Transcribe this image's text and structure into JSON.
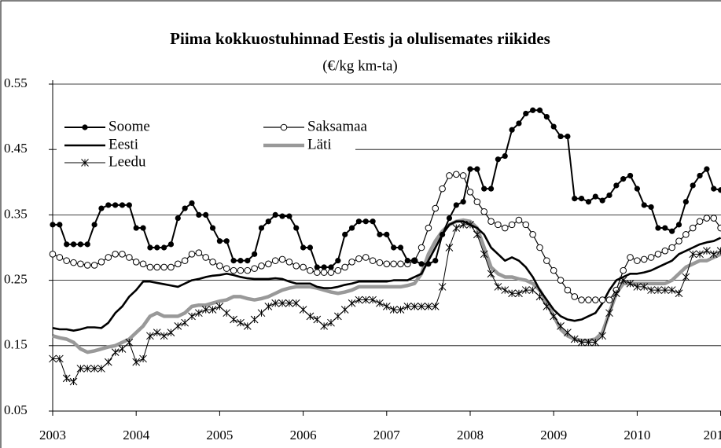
{
  "chart_data": {
    "type": "line",
    "title": "Piima kokkuostuhinnad Eestis ja olulisemates riikides",
    "subtitle": "(€/kg km-ta)",
    "categories": [
      "2003",
      null,
      null,
      null,
      null,
      null,
      null,
      null,
      null,
      null,
      null,
      null,
      "2004",
      null,
      null,
      null,
      null,
      null,
      null,
      null,
      null,
      null,
      null,
      null,
      "2005",
      null,
      null,
      null,
      null,
      null,
      null,
      null,
      null,
      null,
      null,
      null,
      "2006",
      null,
      null,
      null,
      null,
      null,
      null,
      null,
      null,
      null,
      null,
      null,
      "2007",
      null,
      null,
      null,
      null,
      null,
      null,
      null,
      null,
      null,
      null,
      null,
      "2008",
      null,
      null,
      null,
      null,
      null,
      null,
      null,
      null,
      null,
      null,
      null,
      "2009",
      null,
      null,
      null,
      null,
      null,
      null,
      null,
      null,
      null,
      null,
      null,
      "2010",
      null,
      null,
      null,
      null,
      null,
      null,
      null,
      null,
      null,
      null,
      null,
      "201"
    ],
    "ylim": [
      0.05,
      0.55
    ],
    "yticks": [
      0.05,
      0.15,
      0.25,
      0.35,
      0.45,
      0.55
    ],
    "grid": true,
    "legend": "upper left",
    "series": [
      {
        "name": "Soome",
        "color": "#000000",
        "marker": "filled-circle",
        "width": 2,
        "values": [
          0.335,
          0.335,
          0.305,
          0.305,
          0.305,
          0.305,
          0.335,
          0.36,
          0.365,
          0.365,
          0.365,
          0.365,
          0.33,
          0.33,
          0.3,
          0.3,
          0.3,
          0.305,
          0.345,
          0.36,
          0.368,
          0.35,
          0.35,
          0.33,
          0.31,
          0.31,
          0.28,
          0.28,
          0.28,
          0.29,
          0.33,
          0.34,
          0.35,
          0.348,
          0.348,
          0.33,
          0.3,
          0.3,
          0.27,
          0.27,
          0.27,
          0.28,
          0.32,
          0.33,
          0.34,
          0.34,
          0.34,
          0.32,
          0.32,
          0.3,
          0.3,
          0.28,
          0.28,
          0.275,
          0.275,
          0.28,
          0.32,
          0.345,
          0.365,
          0.37,
          0.42,
          0.42,
          0.39,
          0.39,
          0.435,
          0.44,
          0.48,
          0.49,
          0.505,
          0.51,
          0.51,
          0.5,
          0.485,
          0.47,
          0.47,
          0.375,
          0.375,
          0.37,
          0.378,
          0.372,
          0.38,
          0.395,
          0.405,
          0.41,
          0.39,
          0.365,
          0.362,
          0.33,
          0.33,
          0.325,
          0.335,
          0.37,
          0.395,
          0.41,
          0.42,
          0.39,
          0.388
        ]
      },
      {
        "name": "Saksamaa",
        "color": "#000000",
        "marker": "open-circle",
        "width": 1.2,
        "values": [
          0.29,
          0.285,
          0.28,
          0.277,
          0.275,
          0.273,
          0.273,
          0.278,
          0.285,
          0.29,
          0.29,
          0.285,
          0.278,
          0.275,
          0.27,
          0.27,
          0.27,
          0.27,
          0.275,
          0.28,
          0.29,
          0.292,
          0.285,
          0.278,
          0.272,
          0.268,
          0.265,
          0.265,
          0.265,
          0.268,
          0.272,
          0.275,
          0.28,
          0.282,
          0.278,
          0.272,
          0.27,
          0.265,
          0.262,
          0.262,
          0.262,
          0.265,
          0.27,
          0.278,
          0.283,
          0.285,
          0.28,
          0.277,
          0.275,
          0.275,
          0.275,
          0.275,
          0.28,
          0.3,
          0.33,
          0.36,
          0.39,
          0.41,
          0.412,
          0.41,
          0.385,
          0.37,
          0.355,
          0.34,
          0.335,
          0.33,
          0.335,
          0.342,
          0.335,
          0.32,
          0.3,
          0.28,
          0.265,
          0.25,
          0.235,
          0.225,
          0.22,
          0.22,
          0.22,
          0.22,
          0.22,
          0.235,
          0.265,
          0.285,
          0.28,
          0.282,
          0.285,
          0.29,
          0.295,
          0.3,
          0.31,
          0.32,
          0.33,
          0.34,
          0.345,
          0.345,
          0.33
        ]
      },
      {
        "name": "Eesti",
        "color": "#000000",
        "marker": "none",
        "width": 2.6,
        "values": [
          0.177,
          0.175,
          0.175,
          0.173,
          0.175,
          0.178,
          0.178,
          0.177,
          0.185,
          0.2,
          0.21,
          0.225,
          0.235,
          0.248,
          0.248,
          0.246,
          0.244,
          0.242,
          0.24,
          0.245,
          0.25,
          0.252,
          0.255,
          0.257,
          0.258,
          0.26,
          0.258,
          0.255,
          0.253,
          0.252,
          0.252,
          0.252,
          0.253,
          0.252,
          0.248,
          0.245,
          0.245,
          0.245,
          0.24,
          0.238,
          0.238,
          0.24,
          0.243,
          0.245,
          0.248,
          0.248,
          0.248,
          0.248,
          0.248,
          0.25,
          0.25,
          0.25,
          0.255,
          0.26,
          0.28,
          0.3,
          0.32,
          0.335,
          0.34,
          0.34,
          0.335,
          0.33,
          0.32,
          0.3,
          0.29,
          0.28,
          0.285,
          0.28,
          0.27,
          0.255,
          0.235,
          0.22,
          0.205,
          0.195,
          0.19,
          0.188,
          0.19,
          0.195,
          0.2,
          0.215,
          0.235,
          0.25,
          0.255,
          0.26,
          0.26,
          0.262,
          0.265,
          0.27,
          0.275,
          0.28,
          0.29,
          0.295,
          0.3,
          0.305,
          0.308,
          0.31,
          0.315
        ]
      },
      {
        "name": "Läti",
        "color": "#999999",
        "marker": "none",
        "width": 4.5,
        "values": [
          0.165,
          0.162,
          0.16,
          0.155,
          0.145,
          0.14,
          0.142,
          0.145,
          0.148,
          0.15,
          0.155,
          0.16,
          0.17,
          0.18,
          0.195,
          0.2,
          0.195,
          0.195,
          0.195,
          0.2,
          0.21,
          0.212,
          0.212,
          0.215,
          0.218,
          0.22,
          0.225,
          0.225,
          0.222,
          0.22,
          0.222,
          0.225,
          0.23,
          0.235,
          0.238,
          0.24,
          0.24,
          0.24,
          0.238,
          0.235,
          0.232,
          0.23,
          0.232,
          0.235,
          0.24,
          0.24,
          0.24,
          0.24,
          0.24,
          0.24,
          0.24,
          0.242,
          0.245,
          0.26,
          0.29,
          0.31,
          0.325,
          0.335,
          0.34,
          0.342,
          0.34,
          0.33,
          0.3,
          0.27,
          0.26,
          0.255,
          0.255,
          0.252,
          0.25,
          0.245,
          0.235,
          0.215,
          0.195,
          0.175,
          0.165,
          0.16,
          0.158,
          0.158,
          0.16,
          0.17,
          0.2,
          0.23,
          0.245,
          0.245,
          0.245,
          0.245,
          0.245,
          0.245,
          0.245,
          0.25,
          0.26,
          0.27,
          0.275,
          0.28,
          0.28,
          0.285,
          0.29
        ]
      },
      {
        "name": "Leedu",
        "color": "#000000",
        "marker": "asterisk",
        "width": 1,
        "values": [
          0.13,
          0.13,
          0.1,
          0.095,
          0.115,
          0.115,
          0.115,
          0.115,
          0.125,
          0.14,
          0.145,
          0.155,
          0.125,
          0.13,
          0.165,
          0.17,
          0.165,
          0.17,
          0.18,
          0.185,
          0.195,
          0.2,
          0.205,
          0.205,
          0.21,
          0.2,
          0.19,
          0.185,
          0.18,
          0.19,
          0.2,
          0.21,
          0.215,
          0.215,
          0.215,
          0.215,
          0.205,
          0.195,
          0.19,
          0.18,
          0.185,
          0.195,
          0.205,
          0.215,
          0.22,
          0.22,
          0.22,
          0.215,
          0.21,
          0.205,
          0.205,
          0.21,
          0.21,
          0.21,
          0.21,
          0.21,
          0.24,
          0.3,
          0.33,
          0.335,
          0.335,
          0.32,
          0.29,
          0.26,
          0.24,
          0.235,
          0.23,
          0.23,
          0.235,
          0.235,
          0.225,
          0.21,
          0.195,
          0.18,
          0.17,
          0.16,
          0.155,
          0.155,
          0.155,
          0.165,
          0.2,
          0.23,
          0.25,
          0.245,
          0.24,
          0.24,
          0.235,
          0.235,
          0.235,
          0.235,
          0.23,
          0.255,
          0.29,
          0.29,
          0.295,
          0.29,
          0.295
        ]
      }
    ]
  }
}
